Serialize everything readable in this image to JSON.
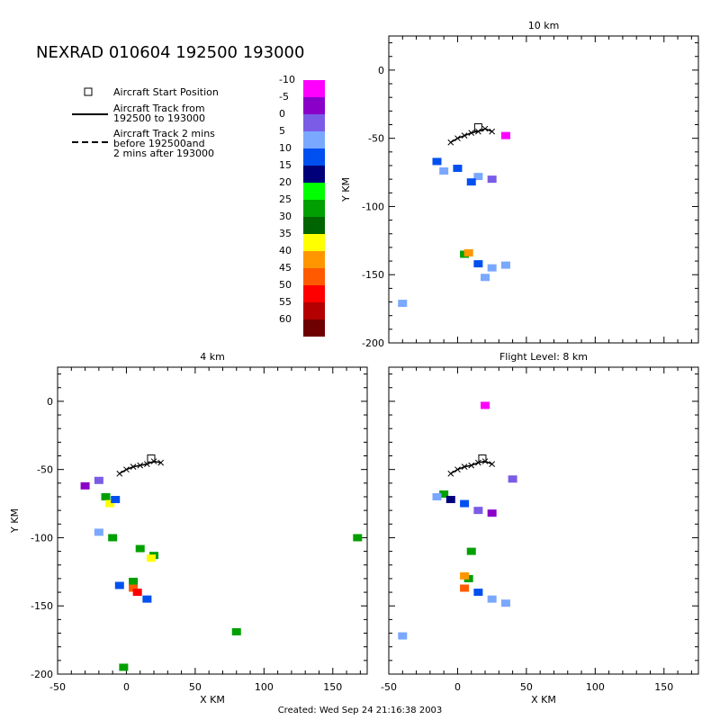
{
  "title": "NEXRAD 010604 192500 193000",
  "footer": "Created: Wed Sep 24 21:16:38 2003",
  "legend": {
    "start": "Aircraft Start Position",
    "track_line1": "Aircraft Track from",
    "track_line2": "192500 to 193000",
    "dash_line1": "Aircraft Track 2 mins",
    "dash_line2": "before 192500and",
    "dash_line3": "2 mins after 193000"
  },
  "colorbar": {
    "labels": [
      "-10",
      "-5",
      "0",
      "5",
      "10",
      "15",
      "20",
      "25",
      "30",
      "35",
      "40",
      "45",
      "50",
      "55",
      "60"
    ],
    "colors": [
      "#ff00ff",
      "#8a00c8",
      "#7a5ce6",
      "#7aa8ff",
      "#0050f0",
      "#00007a",
      "#00ff00",
      "#00a000",
      "#006400",
      "#ffff00",
      "#ff9600",
      "#ff5a00",
      "#ff0000",
      "#b40000",
      "#6e0000"
    ]
  },
  "chart_data": [
    {
      "type": "heatmap",
      "title": "10 km",
      "xlabel": "",
      "ylabel": "Y KM",
      "xlim": [
        -50,
        175
      ],
      "ylim": [
        -200,
        25
      ],
      "xticks": [],
      "yticks": [
        "0",
        "-50",
        "-100",
        "-150",
        "-200"
      ],
      "track": [
        [
          -5,
          -53
        ],
        [
          0,
          -50
        ],
        [
          5,
          -48
        ],
        [
          10,
          -46
        ],
        [
          15,
          -45
        ],
        [
          20,
          -43
        ],
        [
          25,
          -45
        ]
      ],
      "start_position": [
        15,
        -42
      ],
      "cells": [
        {
          "x": -15,
          "y": -67,
          "color": "#0050f0"
        },
        {
          "x": 0,
          "y": -72,
          "color": "#0050f0"
        },
        {
          "x": 15,
          "y": -78,
          "color": "#7aa8ff"
        },
        {
          "x": 25,
          "y": -80,
          "color": "#7a5ce6"
        },
        {
          "x": -10,
          "y": -74,
          "color": "#7aa8ff"
        },
        {
          "x": 10,
          "y": -82,
          "color": "#0050f0"
        },
        {
          "x": 5,
          "y": -135,
          "color": "#00a000"
        },
        {
          "x": 8,
          "y": -134,
          "color": "#ff9600"
        },
        {
          "x": 15,
          "y": -142,
          "color": "#0050f0"
        },
        {
          "x": 25,
          "y": -145,
          "color": "#7aa8ff"
        },
        {
          "x": 35,
          "y": -143,
          "color": "#7aa8ff"
        },
        {
          "x": 20,
          "y": -152,
          "color": "#7aa8ff"
        },
        {
          "x": 35,
          "y": -48,
          "color": "#ff00ff"
        },
        {
          "x": -40,
          "y": -171,
          "color": "#7aa8ff"
        }
      ]
    },
    {
      "type": "heatmap",
      "title": "4 km",
      "xlabel": "X KM",
      "ylabel": "Y KM",
      "xlim": [
        -50,
        175
      ],
      "ylim": [
        -200,
        25
      ],
      "xticks": [
        "-50",
        "0",
        "50",
        "100",
        "150"
      ],
      "yticks": [
        "0",
        "-50",
        "-100",
        "-150",
        "-200"
      ],
      "track": [
        [
          -5,
          -53
        ],
        [
          0,
          -50
        ],
        [
          5,
          -48
        ],
        [
          10,
          -47
        ],
        [
          15,
          -46
        ],
        [
          20,
          -44
        ],
        [
          25,
          -45
        ]
      ],
      "start_position": [
        18,
        -42
      ],
      "cells": [
        {
          "x": -20,
          "y": -58,
          "color": "#7a5ce6"
        },
        {
          "x": -15,
          "y": -70,
          "color": "#00a000"
        },
        {
          "x": -12,
          "y": -75,
          "color": "#ffff00"
        },
        {
          "x": -8,
          "y": -72,
          "color": "#0050f0"
        },
        {
          "x": -20,
          "y": -96,
          "color": "#7aa8ff"
        },
        {
          "x": -10,
          "y": -100,
          "color": "#00a000"
        },
        {
          "x": 20,
          "y": -113,
          "color": "#00a000"
        },
        {
          "x": 18,
          "y": -115,
          "color": "#ffff00"
        },
        {
          "x": 5,
          "y": -132,
          "color": "#00a000"
        },
        {
          "x": 5,
          "y": -137,
          "color": "#ff5a00"
        },
        {
          "x": 8,
          "y": -140,
          "color": "#ff0000"
        },
        {
          "x": -5,
          "y": -135,
          "color": "#0050f0"
        },
        {
          "x": 15,
          "y": -145,
          "color": "#0050f0"
        },
        {
          "x": 80,
          "y": -169,
          "color": "#00a000"
        },
        {
          "x": -2,
          "y": -195,
          "color": "#00a000"
        },
        {
          "x": 168,
          "y": -100,
          "color": "#00a000"
        },
        {
          "x": -30,
          "y": -62,
          "color": "#8a00c8"
        },
        {
          "x": 10,
          "y": -108,
          "color": "#00a000"
        }
      ]
    },
    {
      "type": "heatmap",
      "title": "Flight Level: 8 km",
      "xlabel": "X KM",
      "ylabel": "",
      "xlim": [
        -50,
        175
      ],
      "ylim": [
        -200,
        25
      ],
      "xticks": [
        "-50",
        "0",
        "50",
        "100",
        "150"
      ],
      "yticks": [],
      "track": [
        [
          -5,
          -53
        ],
        [
          0,
          -50
        ],
        [
          5,
          -48
        ],
        [
          10,
          -47
        ],
        [
          15,
          -45
        ],
        [
          20,
          -44
        ],
        [
          25,
          -46
        ]
      ],
      "start_position": [
        18,
        -42
      ],
      "cells": [
        {
          "x": -10,
          "y": -68,
          "color": "#00a000"
        },
        {
          "x": -5,
          "y": -72,
          "color": "#00007a"
        },
        {
          "x": 5,
          "y": -75,
          "color": "#0050f0"
        },
        {
          "x": 15,
          "y": -80,
          "color": "#7a5ce6"
        },
        {
          "x": 25,
          "y": -82,
          "color": "#8a00c8"
        },
        {
          "x": -15,
          "y": -70,
          "color": "#7aa8ff"
        },
        {
          "x": 10,
          "y": -110,
          "color": "#00a000"
        },
        {
          "x": 5,
          "y": -137,
          "color": "#ff5a00"
        },
        {
          "x": 8,
          "y": -130,
          "color": "#00a000"
        },
        {
          "x": 15,
          "y": -140,
          "color": "#0050f0"
        },
        {
          "x": 25,
          "y": -145,
          "color": "#7aa8ff"
        },
        {
          "x": 35,
          "y": -148,
          "color": "#7aa8ff"
        },
        {
          "x": 20,
          "y": -3,
          "color": "#ff00ff"
        },
        {
          "x": 40,
          "y": -57,
          "color": "#7a5ce6"
        },
        {
          "x": -40,
          "y": -172,
          "color": "#7aa8ff"
        },
        {
          "x": 5,
          "y": -128,
          "color": "#ff9600"
        }
      ]
    }
  ]
}
